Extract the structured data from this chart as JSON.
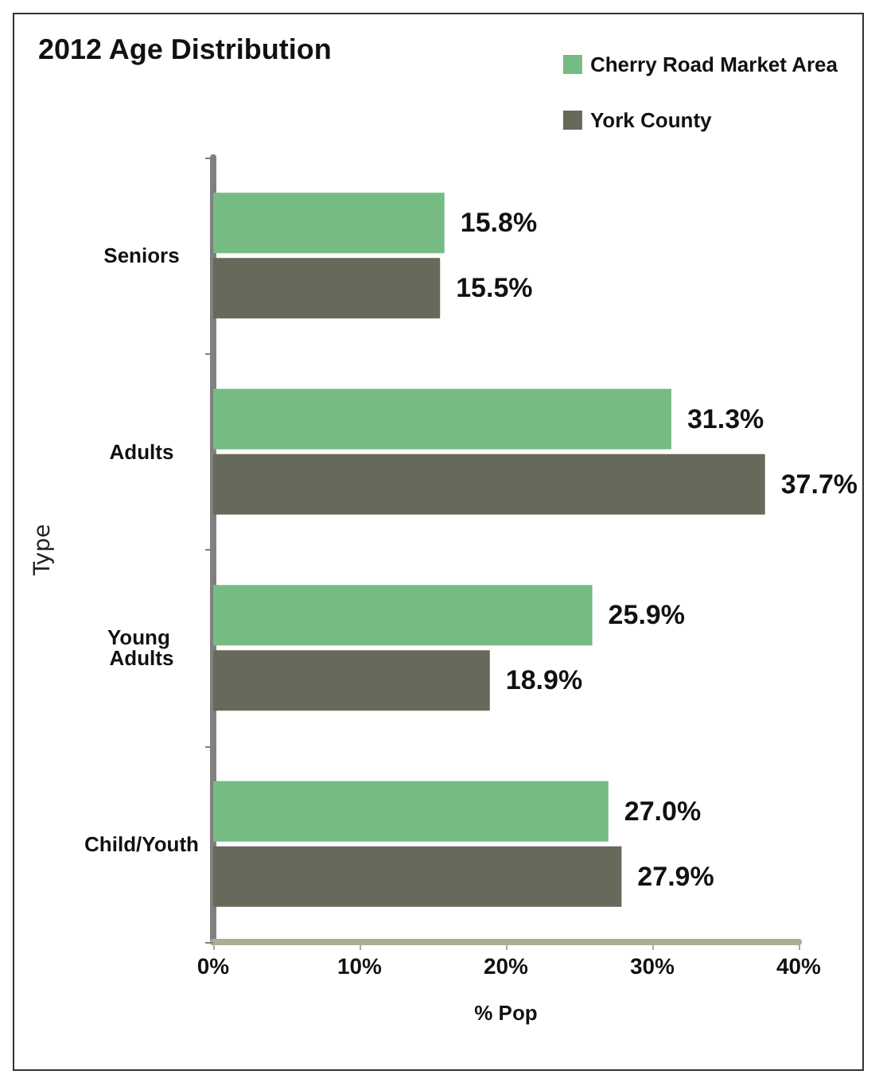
{
  "chart_data": {
    "type": "bar",
    "orientation": "horizontal",
    "title": "2012 Age Distribution",
    "xlabel": "% Pop",
    "ylabel": "Type",
    "categories": [
      "Seniors",
      "Adults",
      "Young Adults",
      "Child/Youth"
    ],
    "series": [
      {
        "name": "Cherry Road Market Area",
        "color": "#77bb84",
        "values": [
          15.8,
          31.3,
          25.9,
          27.0
        ],
        "value_labels": [
          "15.8%",
          "31.3%",
          "25.9%",
          "27.0%"
        ]
      },
      {
        "name": "York County",
        "color": "#67695a",
        "values": [
          15.5,
          37.7,
          18.9,
          27.9
        ],
        "value_labels": [
          "15.5%",
          "37.7%",
          "18.9%",
          "27.9%"
        ]
      }
    ],
    "xlim": [
      0,
      40
    ],
    "xticks": [
      {
        "value": 0,
        "label": "0%"
      },
      {
        "value": 10,
        "label": "10%"
      },
      {
        "value": 20,
        "label": "20%"
      },
      {
        "value": 30,
        "label": "30%"
      },
      {
        "value": 40,
        "label": "40%"
      }
    ],
    "legend": "top right",
    "grid": false
  }
}
